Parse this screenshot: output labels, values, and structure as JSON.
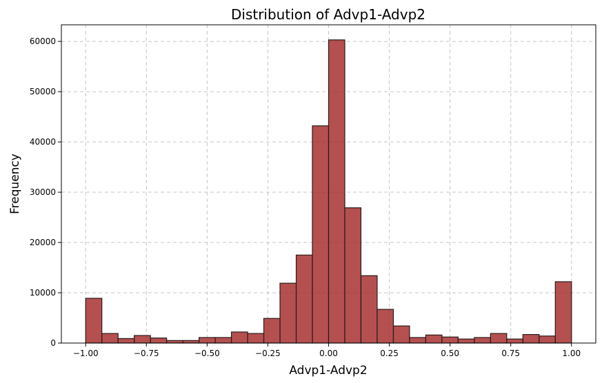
{
  "chart_data": {
    "type": "bar",
    "title": "Distribution of Advp1-Advp2",
    "xlabel": "Advp1-Advp2",
    "ylabel": "Frequency",
    "xlim": [
      -1.1,
      1.1
    ],
    "ylim": [
      0,
      63300
    ],
    "grid": true,
    "bar_color": "#a52a2a",
    "bar_edge_color": "#2a1a1a",
    "bin_edges": [
      -1.0,
      -0.9333,
      -0.8667,
      -0.8,
      -0.7333,
      -0.6667,
      -0.6,
      -0.5333,
      -0.4667,
      -0.4,
      -0.3333,
      -0.2667,
      -0.2,
      -0.1333,
      -0.0667,
      0.0,
      0.0667,
      0.1333,
      0.2,
      0.2667,
      0.3333,
      0.4,
      0.4667,
      0.5333,
      0.6,
      0.6667,
      0.7333,
      0.8,
      0.8667,
      0.9333,
      1.0
    ],
    "values": [
      8900,
      1900,
      900,
      1500,
      1000,
      500,
      500,
      1100,
      1100,
      2200,
      1900,
      4900,
      11900,
      17500,
      43200,
      60300,
      26900,
      13400,
      6700,
      3400,
      1100,
      1600,
      1200,
      800,
      1100,
      1900,
      800,
      1700,
      1400,
      12200
    ],
    "xticks": [
      -1.0,
      -0.75,
      -0.5,
      -0.25,
      0.0,
      0.25,
      0.5,
      0.75,
      1.0
    ],
    "xtick_labels": [
      "−1.00",
      "−0.75",
      "−0.50",
      "−0.25",
      "0.00",
      "0.25",
      "0.50",
      "0.75",
      "1.00"
    ],
    "yticks": [
      0,
      10000,
      20000,
      30000,
      40000,
      50000,
      60000
    ],
    "ytick_labels": [
      "0",
      "10000",
      "20000",
      "30000",
      "40000",
      "50000",
      "60000"
    ]
  }
}
